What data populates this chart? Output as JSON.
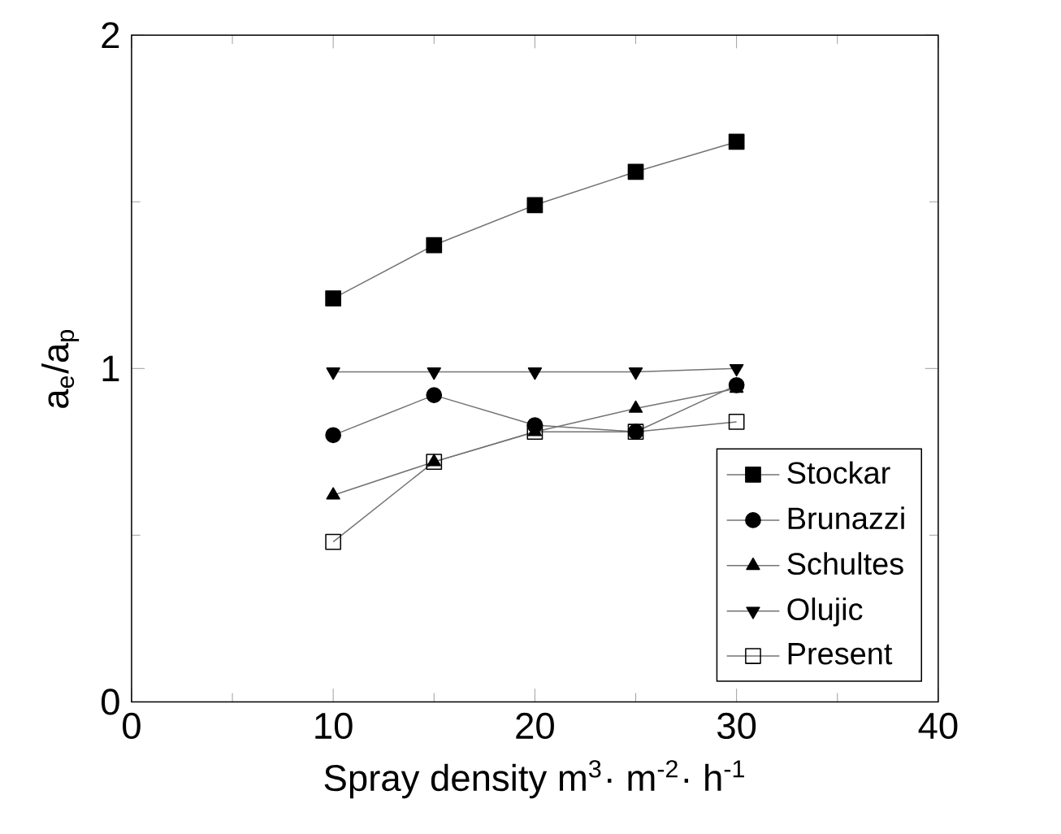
{
  "chart_data": {
    "type": "line",
    "xlabel": "Spray density m$^{3}$· m$^{-2}$· h$^{-1}$",
    "ylabel": "a$_{e}$/a$_{p}$",
    "x": [
      10,
      15,
      20,
      25,
      30
    ],
    "xlim": [
      0,
      40
    ],
    "xticks": [
      0,
      10,
      20,
      30,
      40
    ],
    "ylim": [
      0,
      2
    ],
    "yticks": [
      0,
      1,
      2
    ],
    "legend": "bottom right",
    "grid": false,
    "line_style": "solid",
    "series": [
      {
        "name": "Stockar",
        "color": "#000000",
        "marker": "square",
        "values": [
          1.21,
          1.37,
          1.49,
          1.59,
          1.68
        ]
      },
      {
        "name": "Brunazzi",
        "color": "#000000",
        "marker": "circle",
        "values": [
          0.8,
          0.92,
          0.83,
          0.81,
          0.95
        ]
      },
      {
        "name": "Schultes",
        "color": "#000000",
        "marker": "triangle",
        "values": [
          0.62,
          0.72,
          0.81,
          0.88,
          0.94
        ]
      },
      {
        "name": "Olujic",
        "color": "#000000",
        "marker": "triangle-down",
        "values": [
          0.99,
          0.99,
          0.99,
          0.99,
          1.0
        ]
      },
      {
        "name": "Present",
        "color": "#000000",
        "marker": "square-open",
        "values": [
          0.48,
          0.72,
          0.81,
          0.81,
          0.84
        ]
      }
    ]
  }
}
